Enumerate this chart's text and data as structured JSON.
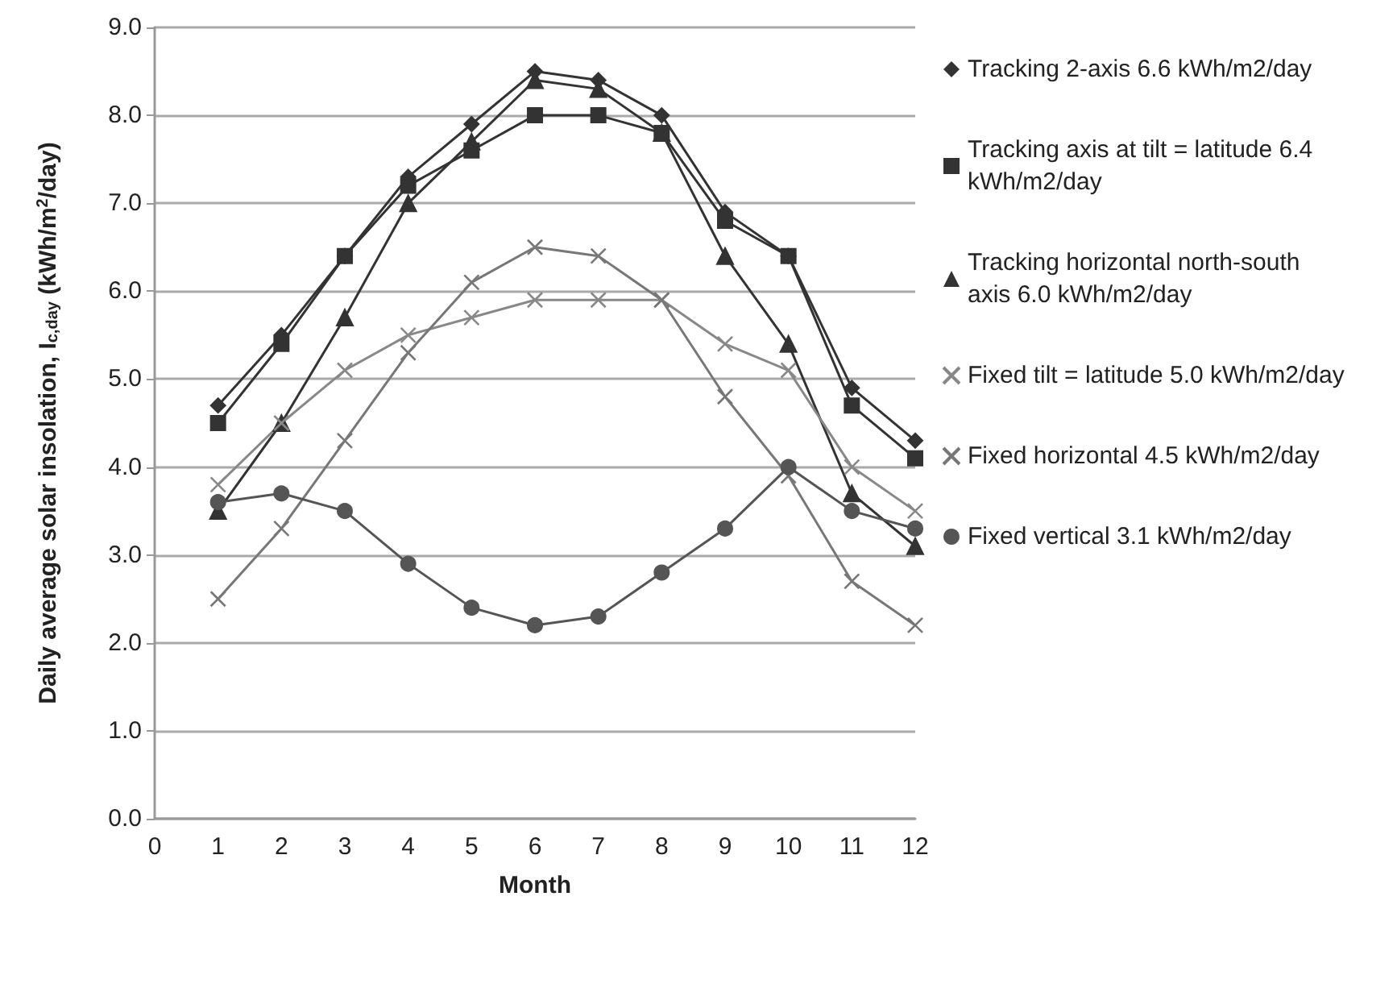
{
  "chart_data": {
    "type": "line",
    "xlabel": "Month",
    "ylabel": "Daily average solar insolation, I$_{c,day}$ (kWh/m$^{2}$/day)",
    "x": [
      1,
      2,
      3,
      4,
      5,
      6,
      7,
      8,
      9,
      10,
      11,
      12
    ],
    "series": [
      {
        "name": "Tracking 2-axis 6.6 kWh/m2/day",
        "color": "#333333",
        "marker": "diamond",
        "values": [
          4.7,
          5.5,
          6.4,
          7.3,
          7.9,
          8.5,
          8.4,
          8.0,
          6.9,
          6.4,
          4.9,
          4.3
        ]
      },
      {
        "name": "Tracking axis at tilt = latitude 6.4 kWh/m2/day",
        "color": "#333333",
        "marker": "square",
        "values": [
          4.5,
          5.4,
          6.4,
          7.2,
          7.6,
          8.0,
          8.0,
          7.8,
          6.8,
          6.4,
          4.7,
          4.1
        ]
      },
      {
        "name": "Tracking horizontal north-south axis 6.0 kWh/m2/day",
        "color": "#333333",
        "marker": "triangle",
        "values": [
          3.5,
          4.5,
          5.7,
          7.0,
          7.7,
          8.4,
          8.3,
          7.8,
          6.4,
          5.4,
          3.7,
          3.1
        ]
      },
      {
        "name": "Fixed tilt = latitude 5.0 kWh/m2/day",
        "color": "#888888",
        "marker": "cross",
        "values": [
          3.8,
          4.5,
          5.1,
          5.5,
          5.7,
          5.9,
          5.9,
          5.9,
          5.4,
          5.1,
          4.0,
          3.5
        ]
      },
      {
        "name": "Fixed horizontal 4.5 kWh/m2/day",
        "color": "#777777",
        "marker": "cross",
        "values": [
          2.5,
          3.3,
          4.3,
          5.3,
          6.1,
          6.5,
          6.4,
          5.9,
          4.8,
          3.9,
          2.7,
          2.2
        ]
      },
      {
        "name": "Fixed vertical 3.1 kWh/m2/day",
        "color": "#555555",
        "marker": "circle",
        "values": [
          3.6,
          3.7,
          3.5,
          2.9,
          2.4,
          2.2,
          2.3,
          2.8,
          3.3,
          4.0,
          3.5,
          3.3
        ]
      }
    ],
    "xlim": [
      0,
      12
    ],
    "xticks": [
      0,
      1,
      2,
      3,
      4,
      5,
      6,
      7,
      8,
      9,
      10,
      11,
      12
    ],
    "ylim": [
      0,
      9
    ],
    "yticks": [
      {
        "value": 0,
        "label": "0.0"
      },
      {
        "value": 1,
        "label": "1.0"
      },
      {
        "value": 2,
        "label": "2.0"
      },
      {
        "value": 3,
        "label": "3.0"
      },
      {
        "value": 4,
        "label": "4.0"
      },
      {
        "value": 5,
        "label": "5.0"
      },
      {
        "value": 6,
        "label": "6.0"
      },
      {
        "value": 7,
        "label": "7.0"
      },
      {
        "value": 8,
        "label": "8.0"
      },
      {
        "value": 9,
        "label": "9.0"
      }
    ],
    "grid": "y",
    "legend": "right",
    "line_style": "solid"
  }
}
